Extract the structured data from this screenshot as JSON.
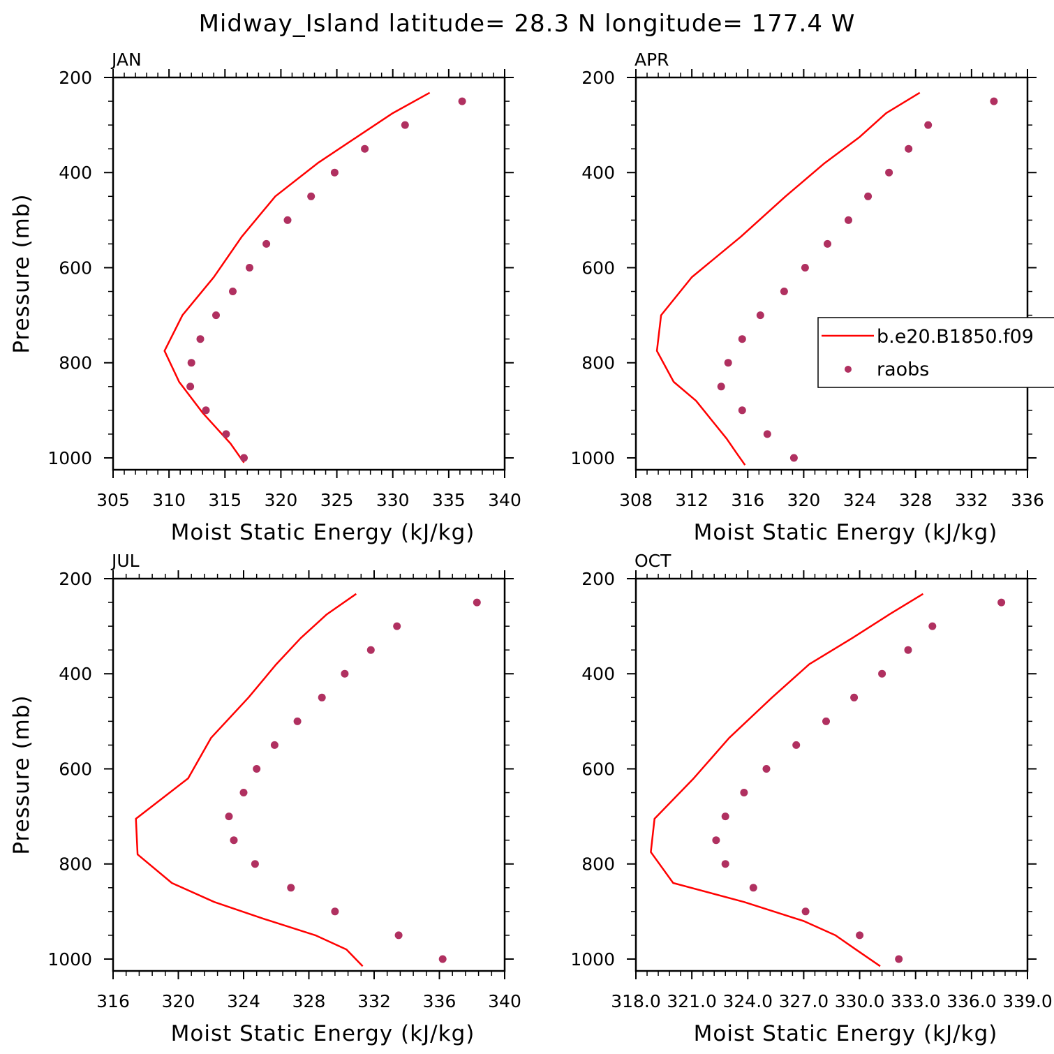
{
  "title": "Midway_Island  latitude= 28.3 N longitude= 177.4 W",
  "colors": {
    "model": "#ff0000",
    "obs": "#b03060",
    "axis": "#000000"
  },
  "legend": {
    "placement": "right of APR panel",
    "entries": [
      {
        "label": "b.e20.B1850.f09",
        "style": "line",
        "color": "#ff0000"
      },
      {
        "label": "raobs",
        "style": "marker",
        "color": "#b03060"
      }
    ]
  },
  "chart_data": [
    {
      "type": "line",
      "label": "JAN",
      "xlabel": "Moist Static Energy (kJ/kg)",
      "ylabel": "Pressure (mb)",
      "xlim": [
        305,
        340
      ],
      "ylim": [
        1025,
        200
      ],
      "xticks": [
        305,
        310,
        315,
        320,
        325,
        330,
        335,
        340
      ],
      "xtick_labels": [
        "305",
        "310",
        "315",
        "320",
        "325",
        "330",
        "335",
        "340"
      ],
      "yticks": [
        200,
        400,
        600,
        800,
        1000
      ],
      "ytick_labels": [
        "200",
        "400",
        "600",
        "800",
        "1000"
      ],
      "series": [
        {
          "kind": "line",
          "x": [
            333.3,
            330.0,
            326.8,
            323.3,
            319.5,
            316.5,
            314.0,
            311.2,
            309.6,
            310.9,
            313.0,
            315.5,
            316.7
          ],
          "y": [
            232,
            275,
            325,
            380,
            450,
            535,
            620,
            700,
            775,
            840,
            905,
            970,
            1010
          ]
        },
        {
          "kind": "scatter",
          "x": [
            336.2,
            331.1,
            327.5,
            324.8,
            322.7,
            320.6,
            318.7,
            317.2,
            315.7,
            314.2,
            312.8,
            312.0,
            311.9,
            313.3,
            315.1,
            316.7
          ],
          "y": [
            250,
            300,
            350,
            400,
            450,
            500,
            550,
            600,
            650,
            700,
            750,
            800,
            850,
            900,
            950,
            1000
          ]
        }
      ]
    },
    {
      "type": "line",
      "label": "APR",
      "xlabel": "Moist Static Energy (kJ/kg)",
      "ylabel": "",
      "xlim": [
        308,
        336
      ],
      "ylim": [
        1025,
        200
      ],
      "xticks": [
        308,
        312,
        316,
        320,
        324,
        328,
        332,
        336
      ],
      "xtick_labels": [
        "308",
        "312",
        "316",
        "320",
        "324",
        "328",
        "332",
        "336"
      ],
      "yticks": [
        200,
        400,
        600,
        800,
        1000
      ],
      "ytick_labels": [
        "200",
        "400",
        "600",
        "800",
        "1000"
      ],
      "series": [
        {
          "kind": "line",
          "x": [
            328.3,
            325.9,
            324.0,
            321.5,
            318.7,
            315.5,
            312.0,
            309.8,
            309.5,
            310.7,
            312.3,
            313.4,
            314.5,
            315.2,
            315.8
          ],
          "y": [
            232,
            275,
            325,
            380,
            450,
            535,
            620,
            700,
            775,
            840,
            880,
            920,
            960,
            990,
            1015
          ]
        },
        {
          "kind": "scatter",
          "x": [
            333.6,
            328.9,
            327.5,
            326.1,
            324.6,
            323.2,
            321.7,
            320.1,
            318.6,
            316.9,
            315.6,
            314.6,
            314.1,
            315.6,
            317.4,
            319.3
          ],
          "y": [
            250,
            300,
            350,
            400,
            450,
            500,
            550,
            600,
            650,
            700,
            750,
            800,
            850,
            900,
            950,
            1000
          ]
        }
      ]
    },
    {
      "type": "line",
      "label": "JUL",
      "xlabel": "Moist Static Energy (kJ/kg)",
      "ylabel": "Pressure (mb)",
      "xlim": [
        316,
        340
      ],
      "ylim": [
        1025,
        200
      ],
      "xticks": [
        316,
        320,
        324,
        328,
        332,
        336,
        340
      ],
      "xtick_labels": [
        "316",
        "320",
        "324",
        "328",
        "332",
        "336",
        "340"
      ],
      "yticks": [
        200,
        400,
        600,
        800,
        1000
      ],
      "ytick_labels": [
        "200",
        "400",
        "600",
        "800",
        "1000"
      ],
      "series": [
        {
          "kind": "line",
          "x": [
            330.9,
            329.1,
            327.5,
            326.0,
            324.3,
            322.0,
            320.6,
            317.4,
            317.5,
            319.6,
            322.2,
            325.2,
            328.4,
            330.3,
            331.3
          ],
          "y": [
            232,
            275,
            325,
            380,
            450,
            535,
            620,
            705,
            780,
            840,
            880,
            915,
            950,
            980,
            1015
          ]
        },
        {
          "kind": "scatter",
          "x": [
            338.3,
            333.4,
            331.8,
            330.2,
            328.8,
            327.3,
            325.9,
            324.8,
            324.0,
            323.1,
            323.4,
            324.7,
            326.9,
            329.6,
            333.5,
            336.2
          ],
          "y": [
            250,
            300,
            350,
            400,
            450,
            500,
            550,
            600,
            650,
            700,
            750,
            800,
            850,
            900,
            950,
            1000
          ]
        }
      ]
    },
    {
      "type": "line",
      "label": "OCT",
      "xlabel": "Moist Static Energy (kJ/kg)",
      "ylabel": "",
      "xlim": [
        318.0,
        339.0
      ],
      "ylim": [
        1025,
        200
      ],
      "xticks": [
        318.0,
        321.0,
        324.0,
        327.0,
        330.0,
        333.0,
        336.0,
        339.0
      ],
      "xtick_labels": [
        "318.0",
        "321.0",
        "324.0",
        "327.0",
        "330.0",
        "333.0",
        "336.0",
        "339.0"
      ],
      "yticks": [
        200,
        400,
        600,
        800,
        1000
      ],
      "ytick_labels": [
        "200",
        "400",
        "600",
        "800",
        "1000"
      ],
      "series": [
        {
          "kind": "line",
          "x": [
            333.4,
            331.6,
            329.6,
            327.3,
            325.3,
            323.0,
            321.1,
            319.0,
            318.8,
            320.0,
            323.8,
            327.0,
            328.7,
            329.8,
            331.1
          ],
          "y": [
            232,
            275,
            325,
            380,
            450,
            535,
            620,
            705,
            775,
            840,
            880,
            920,
            950,
            980,
            1015
          ]
        },
        {
          "kind": "scatter",
          "x": [
            337.6,
            333.9,
            332.6,
            331.2,
            329.7,
            328.2,
            326.6,
            325.0,
            323.8,
            322.8,
            322.3,
            322.8,
            324.3,
            327.1,
            330.0,
            332.1
          ],
          "y": [
            250,
            300,
            350,
            400,
            450,
            500,
            550,
            600,
            650,
            700,
            750,
            800,
            850,
            900,
            950,
            1000
          ]
        }
      ]
    }
  ]
}
